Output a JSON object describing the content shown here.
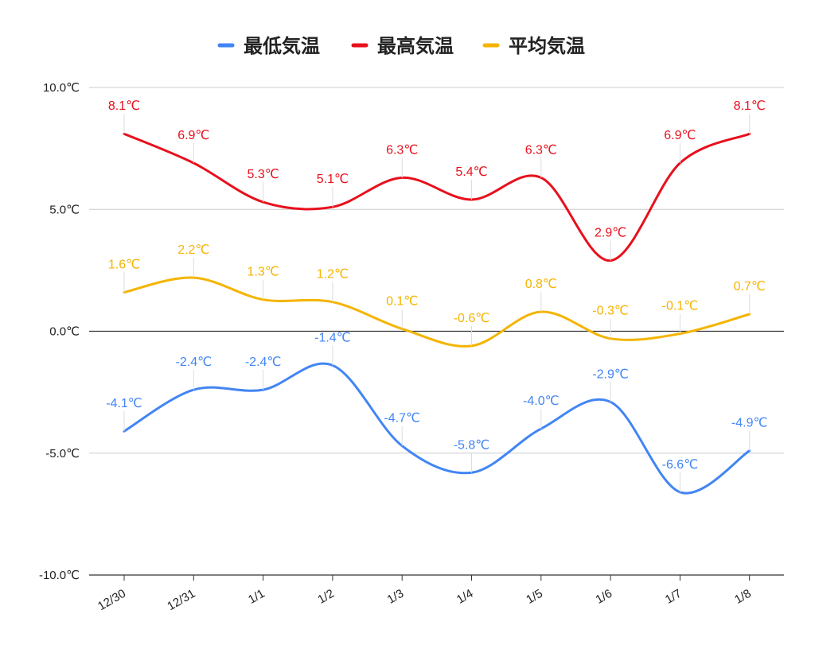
{
  "chart_data": {
    "type": "line",
    "categories": [
      "12/30",
      "12/31",
      "1/1",
      "1/2",
      "1/3",
      "1/4",
      "1/5",
      "1/6",
      "1/7",
      "1/8"
    ],
    "series": [
      {
        "name": "最低気温",
        "color": "#4285f4",
        "values": [
          -4.1,
          -2.4,
          -2.4,
          -1.4,
          -4.7,
          -5.8,
          -4.0,
          -2.9,
          -6.6,
          -4.9
        ],
        "labels": [
          "-4.1℃",
          "-2.4℃",
          "-2.4℃",
          "-1.4℃",
          "-4.7℃",
          "-5.8℃",
          "-4.0℃",
          "-2.9℃",
          "-6.6℃",
          "-4.9℃"
        ]
      },
      {
        "name": "最高気温",
        "color": "#e8101c",
        "values": [
          8.1,
          6.9,
          5.3,
          5.1,
          6.3,
          5.4,
          6.3,
          2.9,
          6.9,
          8.1
        ],
        "labels": [
          "8.1℃",
          "6.9℃",
          "5.3℃",
          "5.1℃",
          "6.3℃",
          "5.4℃",
          "6.3℃",
          "2.9℃",
          "6.9℃",
          "8.1℃"
        ]
      },
      {
        "name": "平均気温",
        "color": "#f4b400",
        "values": [
          1.6,
          2.2,
          1.3,
          1.2,
          0.1,
          -0.6,
          0.8,
          -0.3,
          -0.1,
          0.7
        ],
        "labels": [
          "1.6℃",
          "2.2℃",
          "1.3℃",
          "1.2℃",
          "0.1℃",
          "-0.6℃",
          "0.8℃",
          "-0.3℃",
          "-0.1℃",
          "0.7℃"
        ]
      }
    ],
    "y_ticks": [
      10,
      5,
      0,
      -5,
      -10
    ],
    "y_tick_labels": [
      "10.0℃",
      "5.0℃",
      "0.0℃",
      "-5.0℃",
      "-10.0℃"
    ],
    "ylim": [
      -10,
      10
    ],
    "grid": true,
    "legend": "top-center",
    "smooth": true
  }
}
